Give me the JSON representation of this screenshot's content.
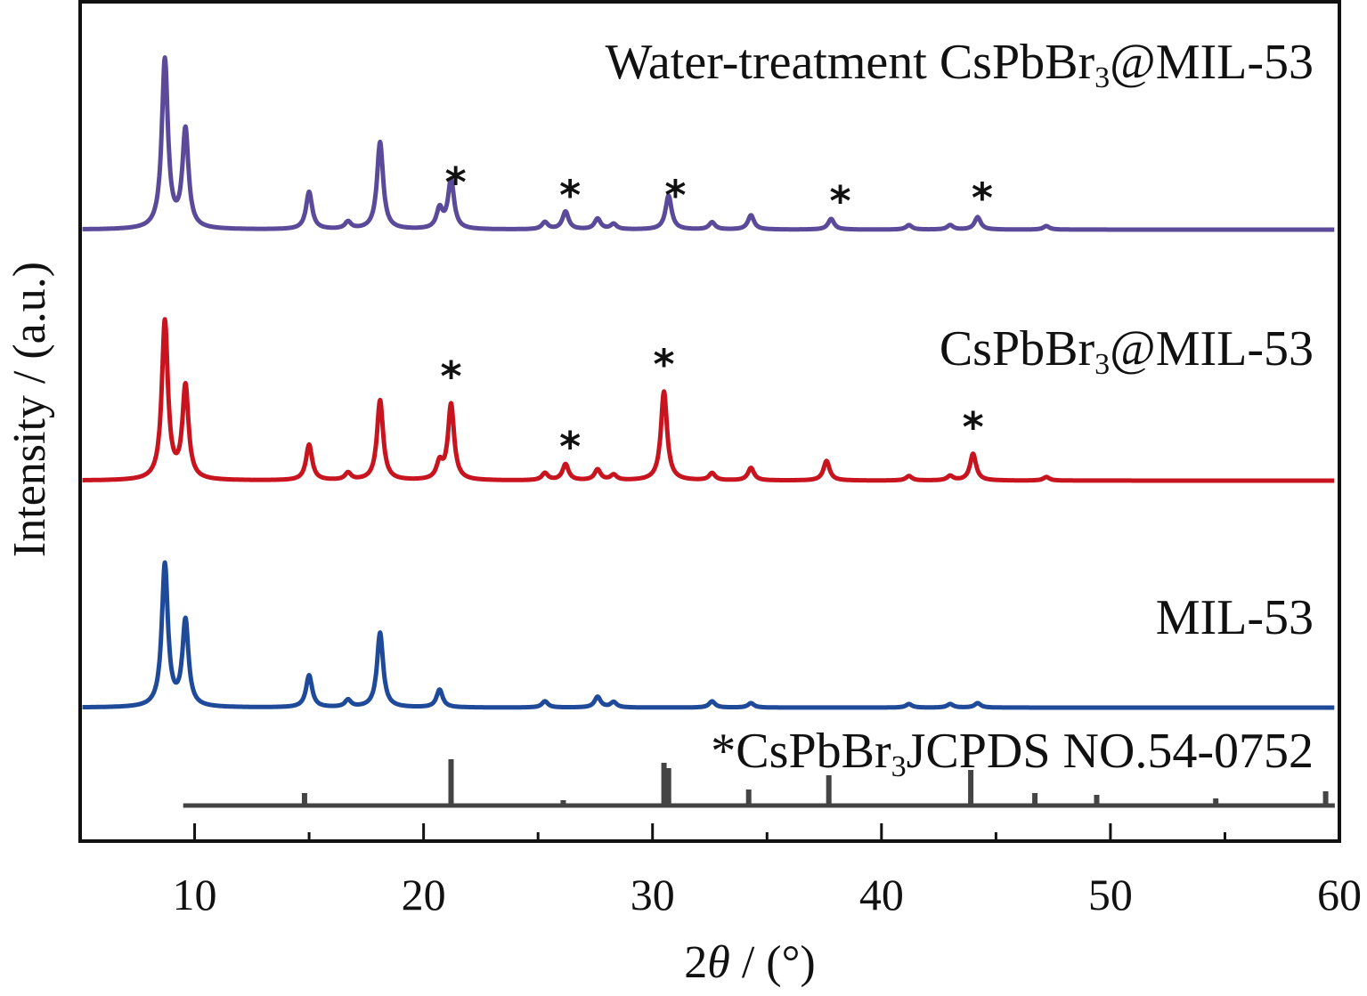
{
  "chart_data": {
    "type": "line",
    "xlabel_prefix": "2",
    "xlabel_theta": "θ",
    "xlabel_suffix": " / (°)",
    "ylabel": "Intensity / (a.u.)",
    "xlim": [
      5,
      60
    ],
    "xticks": [
      10,
      20,
      30,
      40,
      50,
      60
    ],
    "yticks_shown": false,
    "series": [
      {
        "key": "water",
        "label_main": "Water-treatment CsPbBr",
        "label_sub": "3",
        "label_tail": "@MIL-53",
        "color": "#5b4a9a",
        "baseline": 0,
        "peaks": [
          [
            8.7,
            190
          ],
          [
            9.6,
            110
          ],
          [
            15.0,
            42
          ],
          [
            16.7,
            8
          ],
          [
            18.1,
            98
          ],
          [
            20.7,
            22
          ],
          [
            21.2,
            55
          ],
          [
            25.3,
            8
          ],
          [
            26.2,
            20
          ],
          [
            27.6,
            12
          ],
          [
            28.3,
            6
          ],
          [
            30.7,
            38
          ],
          [
            32.6,
            8
          ],
          [
            34.3,
            16
          ],
          [
            37.8,
            12
          ],
          [
            41.2,
            5
          ],
          [
            43.0,
            5
          ],
          [
            44.2,
            14
          ],
          [
            47.2,
            4
          ]
        ],
        "stars": [
          21.4,
          26.4,
          31.0,
          38.2,
          44.4
        ]
      },
      {
        "key": "csp",
        "label_main": "CsPbBr",
        "label_sub": "3",
        "label_tail": "@MIL-53",
        "color": "#c8141e",
        "baseline": 0,
        "peaks": [
          [
            8.7,
            178
          ],
          [
            9.6,
            104
          ],
          [
            15.0,
            40
          ],
          [
            16.7,
            8
          ],
          [
            18.1,
            90
          ],
          [
            20.7,
            18
          ],
          [
            21.2,
            85
          ],
          [
            25.3,
            8
          ],
          [
            26.2,
            18
          ],
          [
            27.6,
            12
          ],
          [
            28.3,
            6
          ],
          [
            30.5,
            100
          ],
          [
            32.6,
            8
          ],
          [
            34.3,
            14
          ],
          [
            37.6,
            22
          ],
          [
            41.2,
            5
          ],
          [
            43.0,
            5
          ],
          [
            44.0,
            30
          ],
          [
            47.2,
            4
          ]
        ],
        "stars": [
          21.2,
          26.4,
          30.5,
          44.0
        ]
      },
      {
        "key": "mil",
        "label_main": "MIL-53",
        "label_sub": "",
        "label_tail": "",
        "color": "#1f4a9a",
        "baseline": 0,
        "peaks": [
          [
            8.7,
            160
          ],
          [
            9.6,
            96
          ],
          [
            15.0,
            36
          ],
          [
            16.7,
            8
          ],
          [
            18.1,
            84
          ],
          [
            20.7,
            20
          ],
          [
            25.3,
            7
          ],
          [
            27.6,
            12
          ],
          [
            28.3,
            6
          ],
          [
            32.6,
            7
          ],
          [
            34.3,
            5
          ],
          [
            41.2,
            4
          ],
          [
            43.0,
            4
          ],
          [
            44.2,
            5
          ]
        ],
        "stars": []
      }
    ],
    "reference": {
      "label_prefix": "*CsPbBr",
      "label_sub": "3",
      "label_tail": "JCPDS NO.54-0752",
      "color": "#444444",
      "x_start": 9.5,
      "x_end": 59.8,
      "lines": [
        [
          14.8,
          14
        ],
        [
          21.2,
          52
        ],
        [
          26.1,
          6
        ],
        [
          30.5,
          48
        ],
        [
          30.7,
          42
        ],
        [
          34.2,
          18
        ],
        [
          37.7,
          34
        ],
        [
          43.9,
          40
        ],
        [
          46.7,
          14
        ],
        [
          49.4,
          12
        ],
        [
          54.6,
          8
        ],
        [
          59.4,
          16
        ]
      ]
    }
  }
}
